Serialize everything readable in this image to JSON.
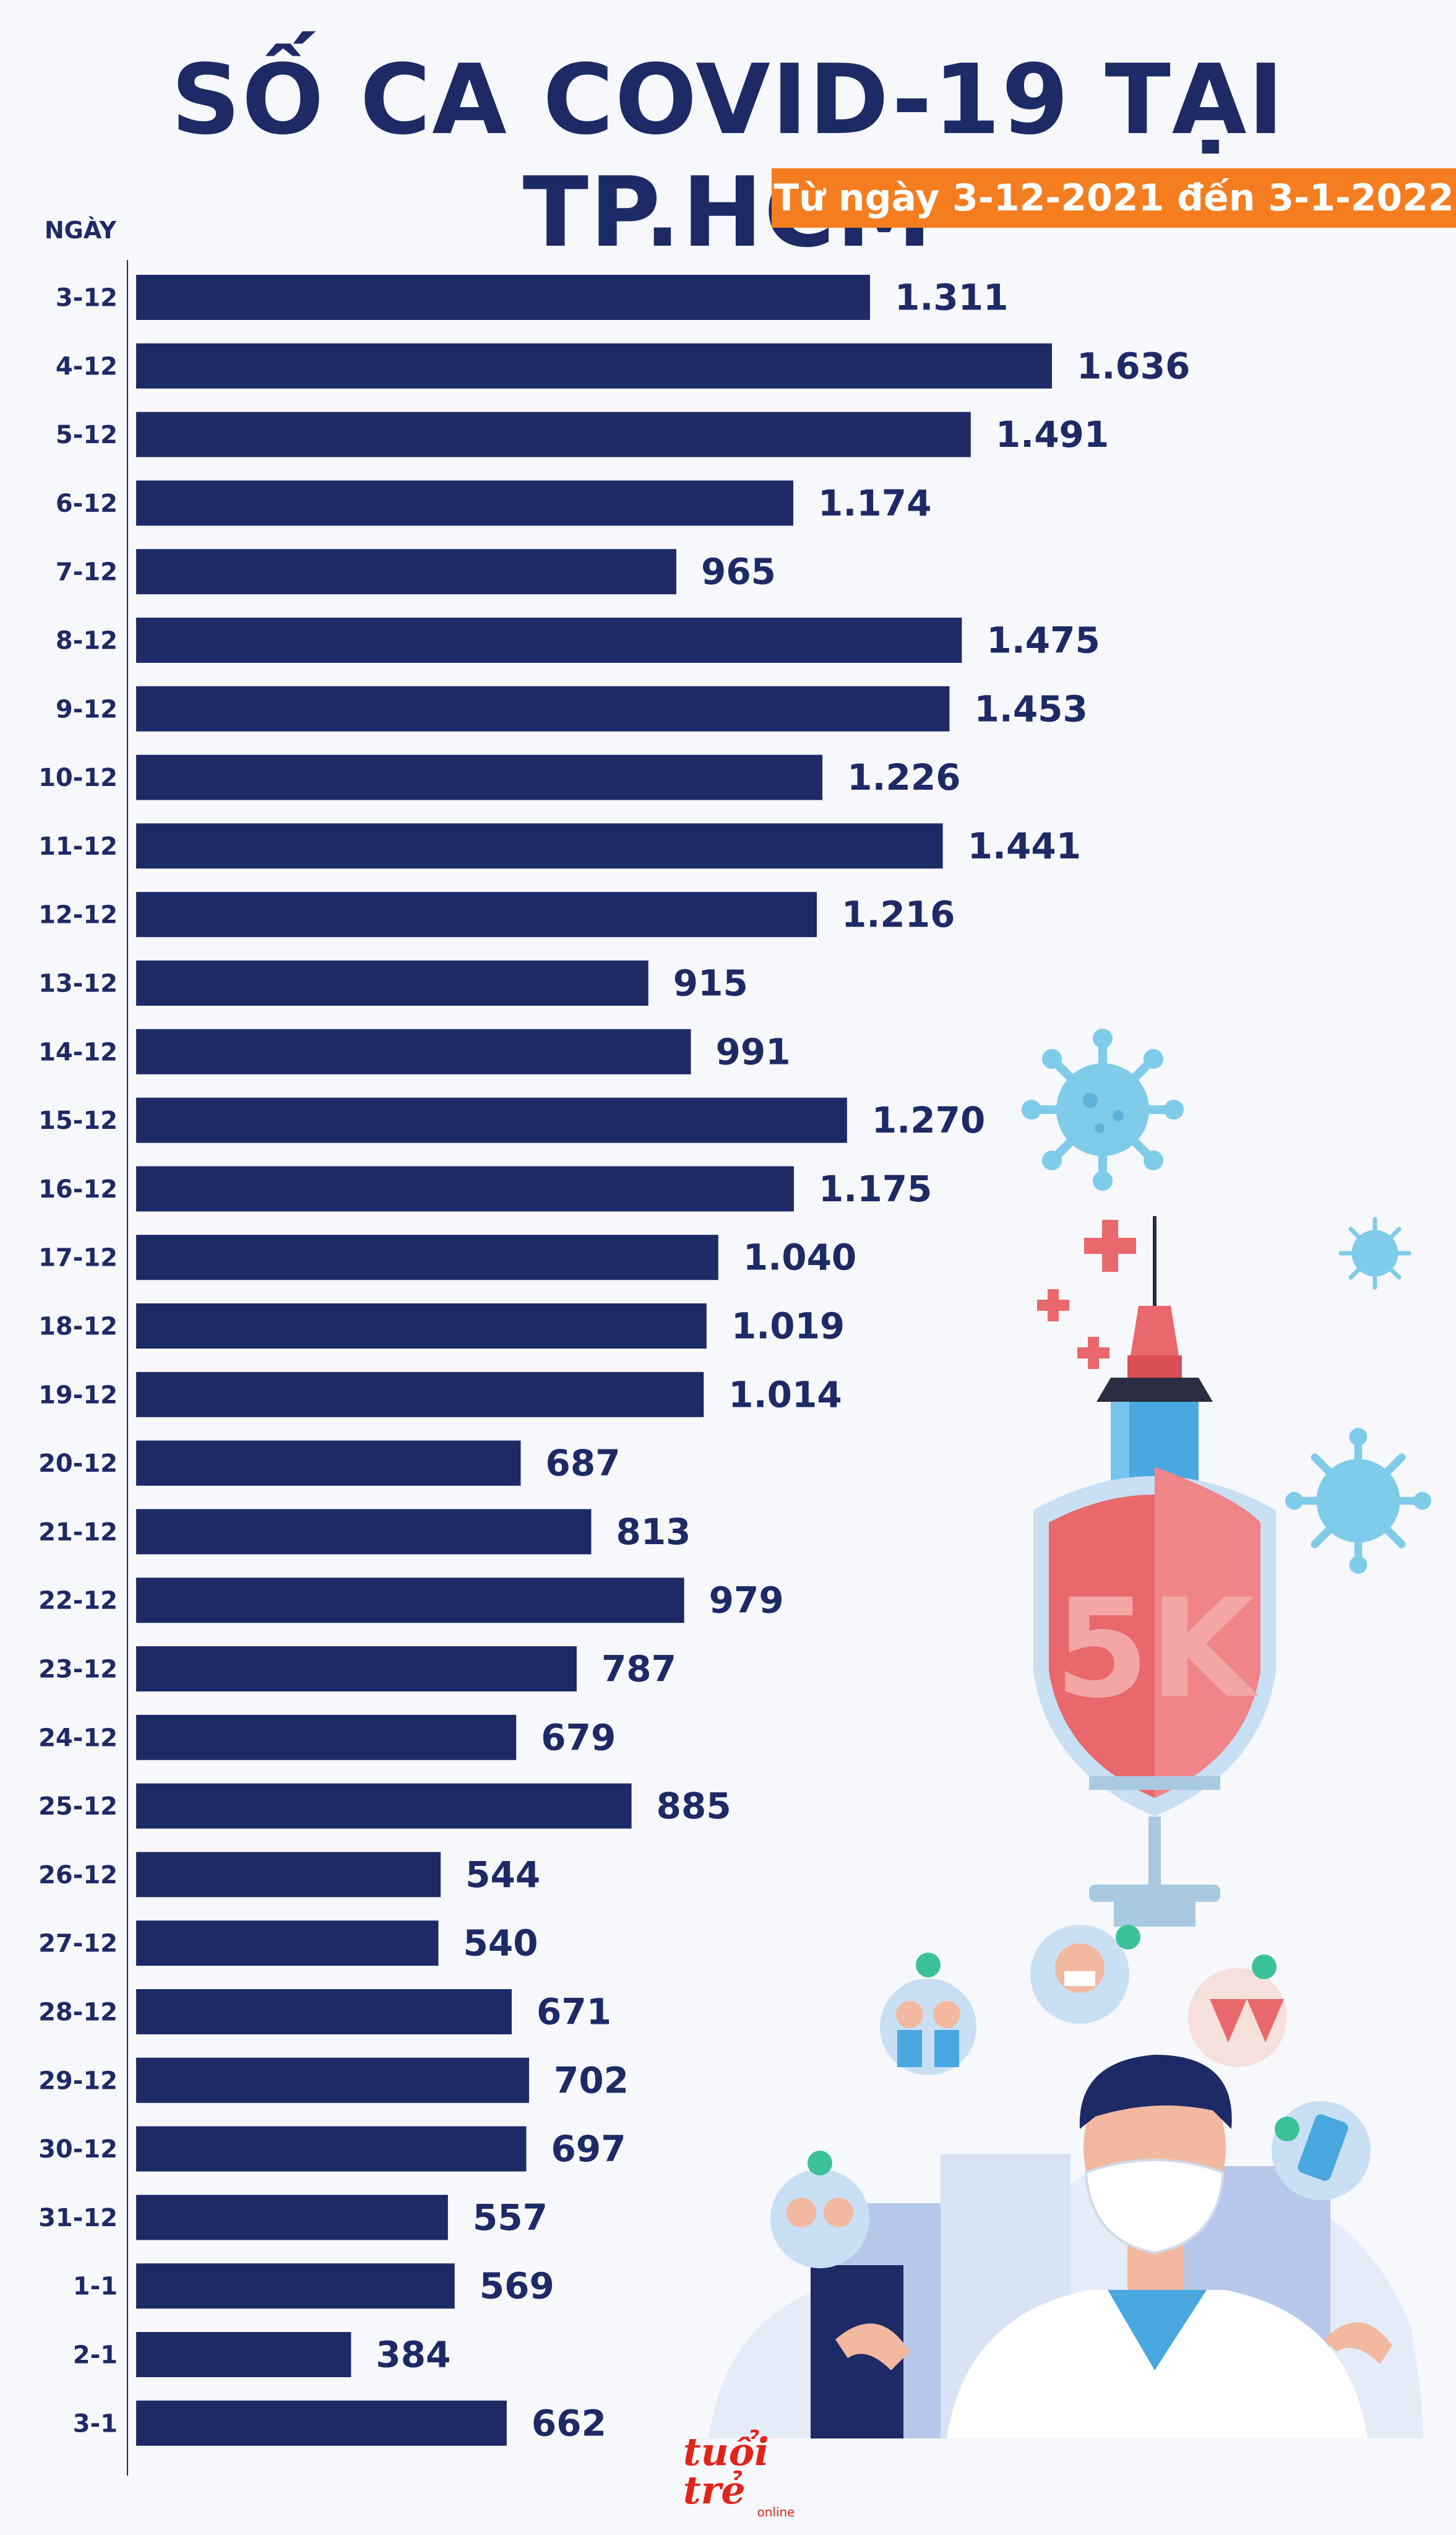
{
  "title": "SỐ CA COVID-19 TẠI TP.HCM",
  "subtitle": "Từ ngày 3-12-2021 đến 3-1-2022",
  "logo": {
    "main": "tuổi trẻ",
    "sub": "online"
  },
  "colors": {
    "bar": "#1d2a66",
    "accent": "#f47d20",
    "virus": "#7ecbea",
    "shield": "#e9686b"
  },
  "chart_data": {
    "type": "bar",
    "orientation": "horizontal",
    "title": "SỐ CA COVID-19 TẠI TP.HCM",
    "subtitle": "Từ ngày 3-12-2021 đến 3-1-2022",
    "ylabel": "NGÀY",
    "xlabel": "",
    "xlim": [
      0,
      1700
    ],
    "grid": false,
    "categories": [
      "3-12",
      "4-12",
      "5-12",
      "6-12",
      "7-12",
      "8-12",
      "9-12",
      "10-12",
      "11-12",
      "12-12",
      "13-12",
      "14-12",
      "15-12",
      "16-12",
      "17-12",
      "18-12",
      "19-12",
      "20-12",
      "21-12",
      "22-12",
      "23-12",
      "24-12",
      "25-12",
      "26-12",
      "27-12",
      "28-12",
      "29-12",
      "30-12",
      "31-12",
      "1-1",
      "2-1",
      "3-1"
    ],
    "values": [
      1311,
      1636,
      1491,
      1174,
      965,
      1475,
      1453,
      1226,
      1441,
      1216,
      915,
      991,
      1270,
      1175,
      1040,
      1019,
      1014,
      687,
      813,
      979,
      787,
      679,
      885,
      544,
      540,
      671,
      702,
      697,
      557,
      569,
      384,
      662
    ],
    "value_labels": [
      "1.311",
      "1.636",
      "1.491",
      "1.174",
      "965",
      "1.475",
      "1.453",
      "1.226",
      "1.441",
      "1.216",
      "915",
      "991",
      "1.270",
      "1.175",
      "1.040",
      "1.019",
      "1.014",
      "687",
      "813",
      "979",
      "787",
      "679",
      "885",
      "544",
      "540",
      "671",
      "702",
      "697",
      "557",
      "569",
      "384",
      "662"
    ]
  },
  "illustration": {
    "shield_text": "5K"
  }
}
